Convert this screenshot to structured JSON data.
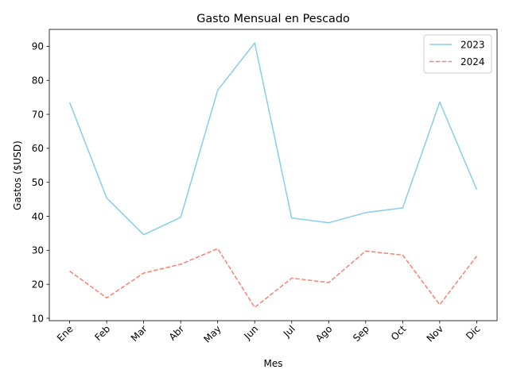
{
  "chart_data": {
    "type": "line",
    "title": "Gasto Mensual en Pescado",
    "xlabel": "Mes",
    "ylabel": "Gastos ($USD)",
    "categories": [
      "Ene",
      "Feb",
      "Mar",
      "Abr",
      "May",
      "Jun",
      "Jul",
      "Ago",
      "Sep",
      "Oct",
      "Nov",
      "Dic"
    ],
    "ylim": [
      9.3,
      95.0
    ],
    "yticks": [
      10,
      20,
      30,
      40,
      50,
      60,
      70,
      80,
      90
    ],
    "grid": false,
    "legend_position": "top-right",
    "series": [
      {
        "name": "2023",
        "color": "#87CEEB",
        "linestyle": "solid",
        "values": [
          73.5,
          45.4,
          34.6,
          39.7,
          77.1,
          91.0,
          39.5,
          38.1,
          41.1,
          42.5,
          73.6,
          47.9
        ]
      },
      {
        "name": "2024",
        "color": "#FA8072",
        "linestyle": "dashed",
        "values": [
          23.9,
          16.0,
          23.3,
          25.9,
          30.5,
          13.2,
          21.8,
          20.5,
          29.8,
          28.6,
          14.0,
          28.3
        ]
      }
    ]
  }
}
